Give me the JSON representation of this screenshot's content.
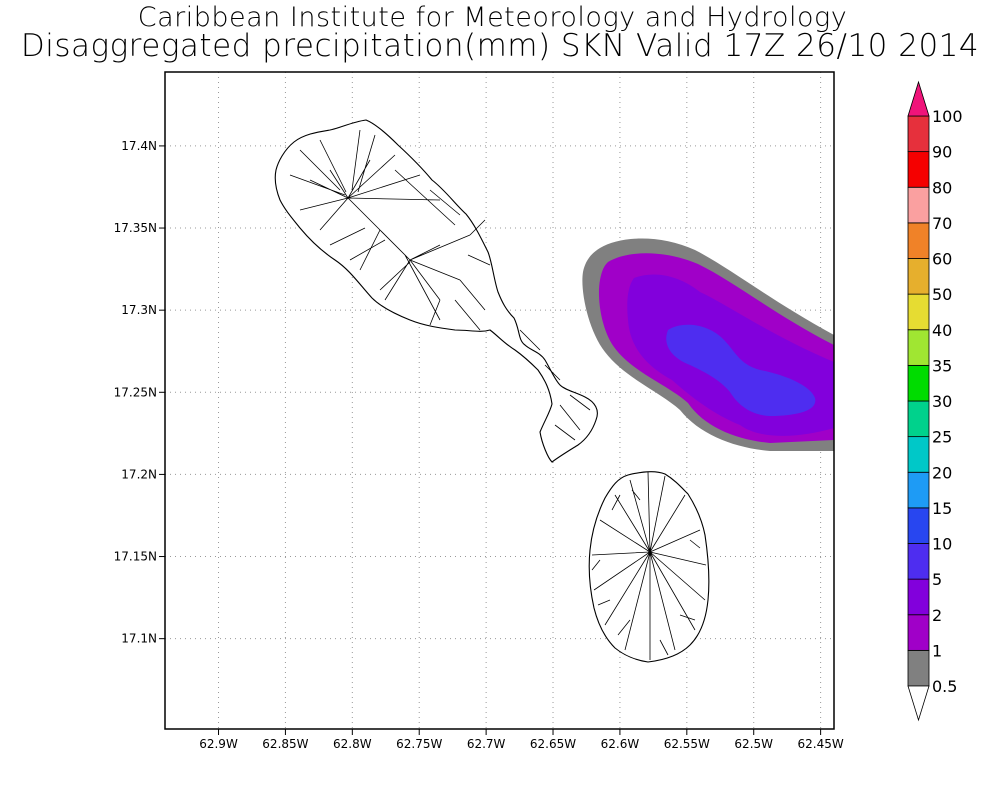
{
  "header": {
    "title": "Caribbean Institute for Meteorology and Hydrology",
    "subtitle": "Disaggregated precipitation(mm) SKN Valid 17Z 26/10 2014"
  },
  "map": {
    "lon_range": [
      -62.94,
      -62.44
    ],
    "lat_range": [
      17.045,
      17.445
    ],
    "x_ticks": [
      {
        "value": -62.9,
        "label": "62.9W"
      },
      {
        "value": -62.85,
        "label": "62.85W"
      },
      {
        "value": -62.8,
        "label": "62.8W"
      },
      {
        "value": -62.75,
        "label": "62.75W"
      },
      {
        "value": -62.7,
        "label": "62.7W"
      },
      {
        "value": -62.65,
        "label": "62.65W"
      },
      {
        "value": -62.6,
        "label": "62.6W"
      },
      {
        "value": -62.55,
        "label": "62.55W"
      },
      {
        "value": -62.5,
        "label": "62.5W"
      },
      {
        "value": -62.45,
        "label": "62.45W"
      }
    ],
    "y_ticks": [
      {
        "value": 17.4,
        "label": "17.4N"
      },
      {
        "value": 17.35,
        "label": "17.35N"
      },
      {
        "value": 17.3,
        "label": "17.3N"
      },
      {
        "value": 17.25,
        "label": "17.25N"
      },
      {
        "value": 17.2,
        "label": "17.2N"
      },
      {
        "value": 17.15,
        "label": "17.15N"
      },
      {
        "value": 17.1,
        "label": "17.1N"
      }
    ],
    "grid": "dotted",
    "features": [
      "St Kitts",
      "Nevis"
    ]
  },
  "colorbar": {
    "levels": [
      {
        "label": "0.5",
        "color": "#808080"
      },
      {
        "label": "1",
        "color": "#a000c8"
      },
      {
        "label": "2",
        "color": "#8200dc"
      },
      {
        "label": "5",
        "color": "#4e2df0"
      },
      {
        "label": "10",
        "color": "#2846f0"
      },
      {
        "label": "15",
        "color": "#1e9bf5"
      },
      {
        "label": "20",
        "color": "#00c8c8"
      },
      {
        "label": "25",
        "color": "#00d28c"
      },
      {
        "label": "30",
        "color": "#00dc00"
      },
      {
        "label": "35",
        "color": "#a0e632"
      },
      {
        "label": "40",
        "color": "#e6dc32"
      },
      {
        "label": "50",
        "color": "#e6af2d"
      },
      {
        "label": "60",
        "color": "#f08228"
      },
      {
        "label": "70",
        "color": "#faa0a0"
      },
      {
        "label": "80",
        "color": "#f50000"
      },
      {
        "label": "90",
        "color": "#e6303c"
      },
      {
        "label": "100",
        "color": "#f0147a"
      }
    ],
    "top_arrow_color": "#f0147a",
    "bottom_arrow_color": "#ffffff"
  },
  "precip_colors": {
    "gray": "#808080",
    "outer": "#a000c8",
    "mid": "#8200dc",
    "core": "#4e2df0"
  }
}
